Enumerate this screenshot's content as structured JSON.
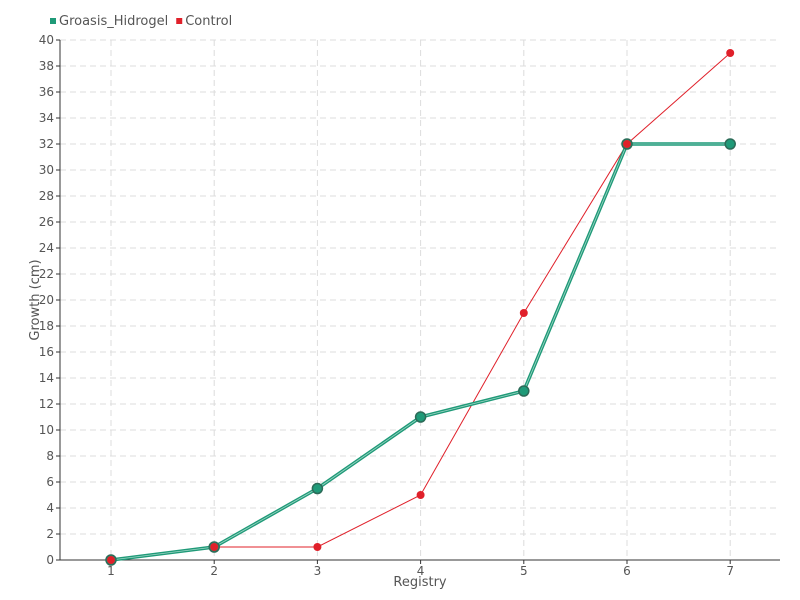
{
  "chart_data": {
    "type": "line",
    "title": "",
    "xlabel": "Registry",
    "ylabel": "Growth (cm)",
    "categories": [
      1,
      2,
      3,
      4,
      5,
      6,
      7
    ],
    "ylim": [
      0,
      40
    ],
    "y_tick_step": 2,
    "grid": true,
    "legend_placement": "top-left",
    "series": [
      {
        "name": "Groasis_Hidrogel",
        "color": "#1f9a78",
        "values": [
          0,
          1,
          5.5,
          11,
          13,
          32,
          32
        ]
      },
      {
        "name": "Control",
        "color": "#e0202a",
        "values": [
          0,
          1,
          1,
          5,
          19,
          32,
          39
        ]
      }
    ]
  }
}
